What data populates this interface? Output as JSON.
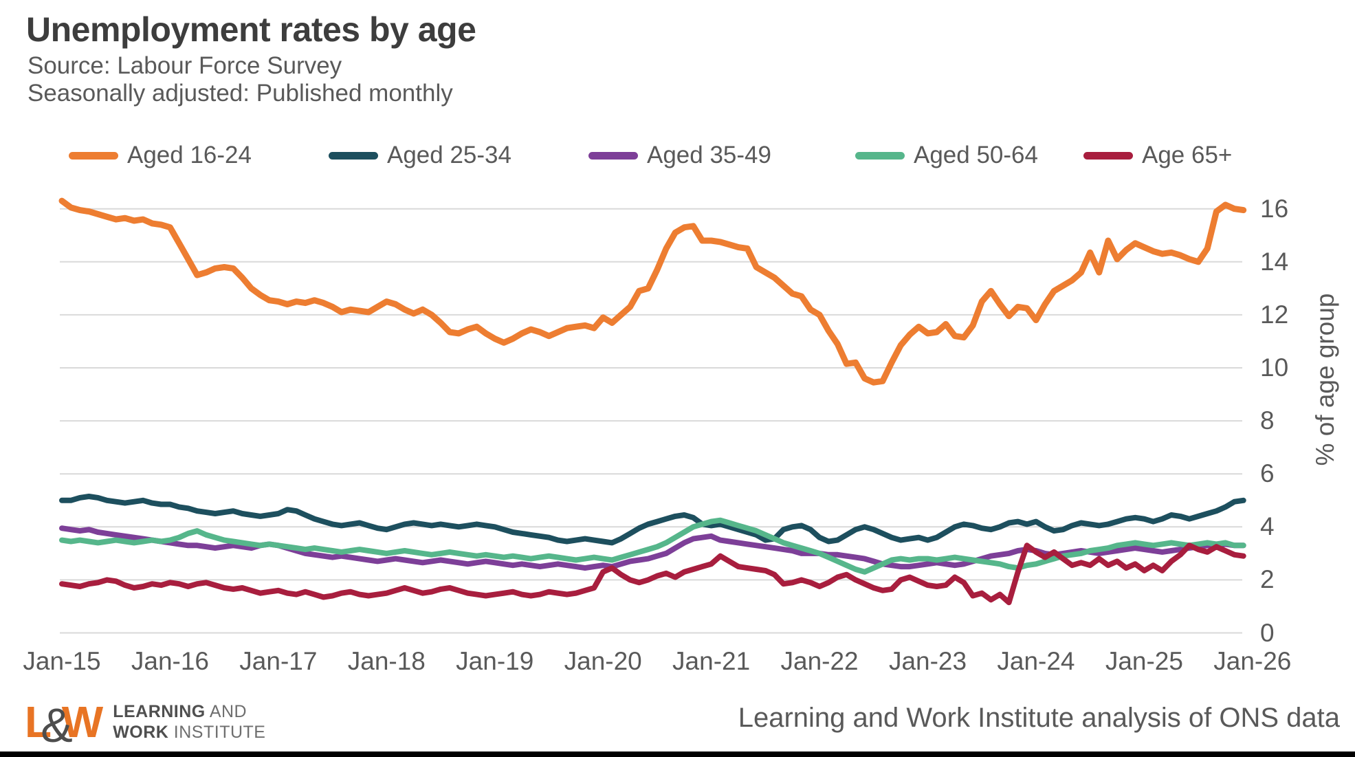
{
  "header": {
    "title": "Unemployment rates by age",
    "source_line": "Source: Labour Force Survey",
    "adjustment_line": "Seasonally adjusted: Published monthly"
  },
  "legend": {
    "position": "top",
    "items": [
      {
        "label": "Aged 16-24",
        "color": "#ED7D31"
      },
      {
        "label": "Aged 25-34",
        "color": "#1D4F5E"
      },
      {
        "label": "Aged 35-49",
        "color": "#7D3F98"
      },
      {
        "label": "Aged 50-64",
        "color": "#56B68B"
      },
      {
        "label": "Age 65+",
        "color": "#A81E3E"
      }
    ]
  },
  "y_axis": {
    "title": "% of age group",
    "ticks": [
      16,
      14,
      12,
      10,
      8,
      6,
      4,
      2,
      0
    ],
    "range": [
      0,
      16.5
    ]
  },
  "x_axis": {
    "ticks": [
      "Jan-15",
      "Jan-16",
      "Jan-17",
      "Jan-18",
      "Jan-19",
      "Jan-20",
      "Jan-21",
      "Jan-22",
      "Jan-23",
      "Jan-24",
      "Jan-25",
      "Jan-26"
    ]
  },
  "footer": {
    "logo": {
      "letter_l": "L",
      "ampersand": "&",
      "letter_w": "W",
      "line1_bold": "LEARNING",
      "line1_rest": " AND",
      "line2_bold": "WORK",
      "line2_rest": " INSTITUTE",
      "orange": "#E87424",
      "gray": "#4D4D4D"
    },
    "attribution": "Learning and Work Institute analysis of ONS data"
  },
  "chart_data": {
    "type": "line",
    "title": "Unemployment rates by age",
    "ylabel": "% of age group",
    "xlabel": "",
    "unit": "percent",
    "frequency": "monthly",
    "start_month": "Jan-15",
    "end_month": "Dec-25",
    "x_tick_labels": [
      "Jan-15",
      "Jan-16",
      "Jan-17",
      "Jan-18",
      "Jan-19",
      "Jan-20",
      "Jan-21",
      "Jan-22",
      "Jan-23",
      "Jan-24",
      "Jan-25",
      "Jan-26"
    ],
    "ylim": [
      0,
      16.5
    ],
    "grid": "horizontal",
    "layout": {
      "grid_color": "#D9D9D9",
      "legend_position": "top",
      "y_axis_side": "right"
    },
    "series": [
      {
        "id": "aged-16-24",
        "name": "Aged 16-24",
        "color": "#ED7D31",
        "values": [
          16.3,
          16.05,
          15.95,
          15.9,
          15.8,
          15.7,
          15.6,
          15.65,
          15.55,
          15.6,
          15.45,
          15.4,
          15.3,
          14.7,
          14.1,
          13.5,
          13.6,
          13.75,
          13.8,
          13.75,
          13.4,
          13.0,
          12.75,
          12.55,
          12.5,
          12.4,
          12.5,
          12.45,
          12.55,
          12.45,
          12.3,
          12.1,
          12.2,
          12.15,
          12.1,
          12.3,
          12.5,
          12.4,
          12.2,
          12.05,
          12.2,
          12.0,
          11.7,
          11.35,
          11.3,
          11.45,
          11.55,
          11.3,
          11.1,
          10.95,
          11.1,
          11.3,
          11.45,
          11.35,
          11.2,
          11.35,
          11.5,
          11.55,
          11.6,
          11.5,
          11.9,
          11.7,
          12.0,
          12.3,
          12.9,
          13.0,
          13.7,
          14.5,
          15.1,
          15.3,
          15.35,
          14.8,
          14.8,
          14.75,
          14.65,
          14.55,
          14.5,
          13.8,
          13.6,
          13.4,
          13.1,
          12.8,
          12.7,
          12.2,
          12.0,
          11.4,
          10.9,
          10.15,
          10.2,
          9.6,
          9.45,
          9.5,
          10.2,
          10.85,
          11.25,
          11.55,
          11.3,
          11.35,
          11.65,
          11.2,
          11.15,
          11.6,
          12.5,
          12.9,
          12.4,
          11.95,
          12.3,
          12.25,
          11.8,
          12.4,
          12.9,
          13.1,
          13.3,
          13.6,
          14.35,
          13.6,
          14.8,
          14.1,
          14.45,
          14.7,
          14.55,
          14.4,
          14.3,
          14.35,
          14.25,
          14.1,
          14.0,
          14.5,
          15.9,
          16.15,
          16.0,
          15.95
        ]
      },
      {
        "id": "aged-25-34",
        "name": "Aged 25-34",
        "color": "#1D4F5E",
        "values": [
          5.0,
          5.0,
          5.1,
          5.15,
          5.1,
          5.0,
          4.95,
          4.9,
          4.95,
          5.0,
          4.9,
          4.85,
          4.85,
          4.75,
          4.7,
          4.6,
          4.55,
          4.5,
          4.55,
          4.6,
          4.5,
          4.45,
          4.4,
          4.45,
          4.5,
          4.65,
          4.6,
          4.45,
          4.3,
          4.2,
          4.1,
          4.05,
          4.1,
          4.15,
          4.05,
          3.95,
          3.9,
          4.0,
          4.1,
          4.15,
          4.1,
          4.05,
          4.1,
          4.05,
          4.0,
          4.05,
          4.1,
          4.05,
          4.0,
          3.9,
          3.8,
          3.75,
          3.7,
          3.65,
          3.6,
          3.5,
          3.45,
          3.5,
          3.55,
          3.5,
          3.45,
          3.4,
          3.55,
          3.75,
          3.95,
          4.1,
          4.2,
          4.3,
          4.4,
          4.45,
          4.35,
          4.1,
          4.05,
          4.1,
          4.0,
          3.9,
          3.8,
          3.7,
          3.5,
          3.55,
          3.9,
          4.0,
          4.05,
          3.9,
          3.6,
          3.45,
          3.5,
          3.7,
          3.9,
          4.0,
          3.9,
          3.75,
          3.6,
          3.5,
          3.55,
          3.6,
          3.5,
          3.6,
          3.8,
          4.0,
          4.1,
          4.05,
          3.95,
          3.9,
          4.0,
          4.15,
          4.2,
          4.1,
          4.2,
          4.0,
          3.85,
          3.9,
          4.05,
          4.15,
          4.1,
          4.05,
          4.1,
          4.2,
          4.3,
          4.35,
          4.3,
          4.2,
          4.3,
          4.45,
          4.4,
          4.3,
          4.4,
          4.5,
          4.6,
          4.75,
          4.95,
          5.0
        ]
      },
      {
        "id": "aged-35-49",
        "name": "Aged 35-49",
        "color": "#7D3F98",
        "values": [
          3.95,
          3.9,
          3.85,
          3.9,
          3.8,
          3.75,
          3.7,
          3.65,
          3.6,
          3.55,
          3.5,
          3.45,
          3.4,
          3.35,
          3.3,
          3.3,
          3.25,
          3.2,
          3.25,
          3.3,
          3.25,
          3.2,
          3.3,
          3.35,
          3.3,
          3.2,
          3.1,
          3.0,
          2.95,
          2.9,
          2.85,
          2.9,
          2.85,
          2.8,
          2.75,
          2.7,
          2.75,
          2.8,
          2.75,
          2.7,
          2.65,
          2.7,
          2.75,
          2.7,
          2.65,
          2.6,
          2.65,
          2.7,
          2.65,
          2.6,
          2.55,
          2.6,
          2.55,
          2.5,
          2.55,
          2.6,
          2.55,
          2.5,
          2.45,
          2.5,
          2.55,
          2.5,
          2.6,
          2.7,
          2.75,
          2.8,
          2.9,
          3.0,
          3.2,
          3.4,
          3.55,
          3.6,
          3.65,
          3.5,
          3.45,
          3.4,
          3.35,
          3.3,
          3.25,
          3.2,
          3.15,
          3.1,
          3.0,
          3.0,
          3.0,
          2.95,
          2.95,
          2.9,
          2.85,
          2.8,
          2.7,
          2.6,
          2.55,
          2.5,
          2.5,
          2.55,
          2.6,
          2.65,
          2.6,
          2.55,
          2.6,
          2.7,
          2.8,
          2.9,
          2.95,
          3.0,
          3.1,
          3.15,
          3.1,
          3.0,
          2.95,
          3.0,
          3.05,
          3.1,
          3.05,
          3.0,
          3.05,
          3.1,
          3.15,
          3.2,
          3.15,
          3.1,
          3.05,
          3.1,
          3.15,
          3.2,
          3.25,
          3.3,
          3.3,
          3.35,
          3.3,
          3.3
        ]
      },
      {
        "id": "aged-50-64",
        "name": "Aged 50-64",
        "color": "#56B68B",
        "values": [
          3.5,
          3.45,
          3.5,
          3.45,
          3.4,
          3.45,
          3.5,
          3.45,
          3.4,
          3.45,
          3.5,
          3.45,
          3.5,
          3.6,
          3.75,
          3.85,
          3.7,
          3.6,
          3.5,
          3.45,
          3.4,
          3.35,
          3.3,
          3.35,
          3.3,
          3.25,
          3.2,
          3.15,
          3.2,
          3.15,
          3.1,
          3.05,
          3.1,
          3.15,
          3.1,
          3.05,
          3.0,
          3.05,
          3.1,
          3.05,
          3.0,
          2.95,
          3.0,
          3.05,
          3.0,
          2.95,
          2.9,
          2.95,
          2.9,
          2.85,
          2.9,
          2.85,
          2.8,
          2.85,
          2.9,
          2.85,
          2.8,
          2.75,
          2.8,
          2.85,
          2.8,
          2.75,
          2.85,
          2.95,
          3.05,
          3.15,
          3.25,
          3.4,
          3.6,
          3.8,
          4.0,
          4.1,
          4.2,
          4.25,
          4.15,
          4.05,
          3.95,
          3.85,
          3.7,
          3.55,
          3.4,
          3.3,
          3.2,
          3.1,
          3.0,
          2.85,
          2.7,
          2.55,
          2.4,
          2.3,
          2.45,
          2.6,
          2.75,
          2.8,
          2.75,
          2.8,
          2.8,
          2.75,
          2.8,
          2.85,
          2.8,
          2.75,
          2.7,
          2.65,
          2.6,
          2.5,
          2.45,
          2.55,
          2.6,
          2.7,
          2.8,
          2.9,
          2.95,
          3.0,
          3.1,
          3.15,
          3.2,
          3.3,
          3.35,
          3.4,
          3.35,
          3.3,
          3.35,
          3.4,
          3.35,
          3.3,
          3.35,
          3.4,
          3.35,
          3.4,
          3.3,
          3.3
        ]
      },
      {
        "id": "age-65-plus",
        "name": "Age 65+",
        "color": "#A81E3E",
        "values": [
          1.85,
          1.8,
          1.75,
          1.85,
          1.9,
          2.0,
          1.95,
          1.8,
          1.7,
          1.75,
          1.85,
          1.8,
          1.9,
          1.85,
          1.75,
          1.85,
          1.9,
          1.8,
          1.7,
          1.65,
          1.7,
          1.6,
          1.5,
          1.55,
          1.6,
          1.5,
          1.45,
          1.55,
          1.45,
          1.35,
          1.4,
          1.5,
          1.55,
          1.45,
          1.4,
          1.45,
          1.5,
          1.6,
          1.7,
          1.6,
          1.5,
          1.55,
          1.65,
          1.7,
          1.6,
          1.5,
          1.45,
          1.4,
          1.45,
          1.5,
          1.55,
          1.45,
          1.4,
          1.45,
          1.55,
          1.5,
          1.45,
          1.5,
          1.6,
          1.7,
          2.3,
          2.45,
          2.2,
          2.0,
          1.9,
          2.0,
          2.15,
          2.25,
          2.1,
          2.3,
          2.4,
          2.5,
          2.6,
          2.9,
          2.7,
          2.5,
          2.45,
          2.4,
          2.35,
          2.2,
          1.85,
          1.9,
          2.0,
          1.9,
          1.75,
          1.9,
          2.1,
          2.2,
          2.0,
          1.85,
          1.7,
          1.6,
          1.65,
          2.0,
          2.1,
          1.95,
          1.8,
          1.75,
          1.8,
          2.1,
          1.9,
          1.4,
          1.5,
          1.25,
          1.45,
          1.15,
          2.3,
          3.3,
          3.05,
          2.85,
          3.05,
          2.8,
          2.55,
          2.65,
          2.55,
          2.8,
          2.55,
          2.7,
          2.45,
          2.6,
          2.35,
          2.55,
          2.35,
          2.7,
          2.95,
          3.3,
          3.15,
          3.05,
          3.25,
          3.1,
          2.95,
          2.9
        ]
      }
    ]
  }
}
